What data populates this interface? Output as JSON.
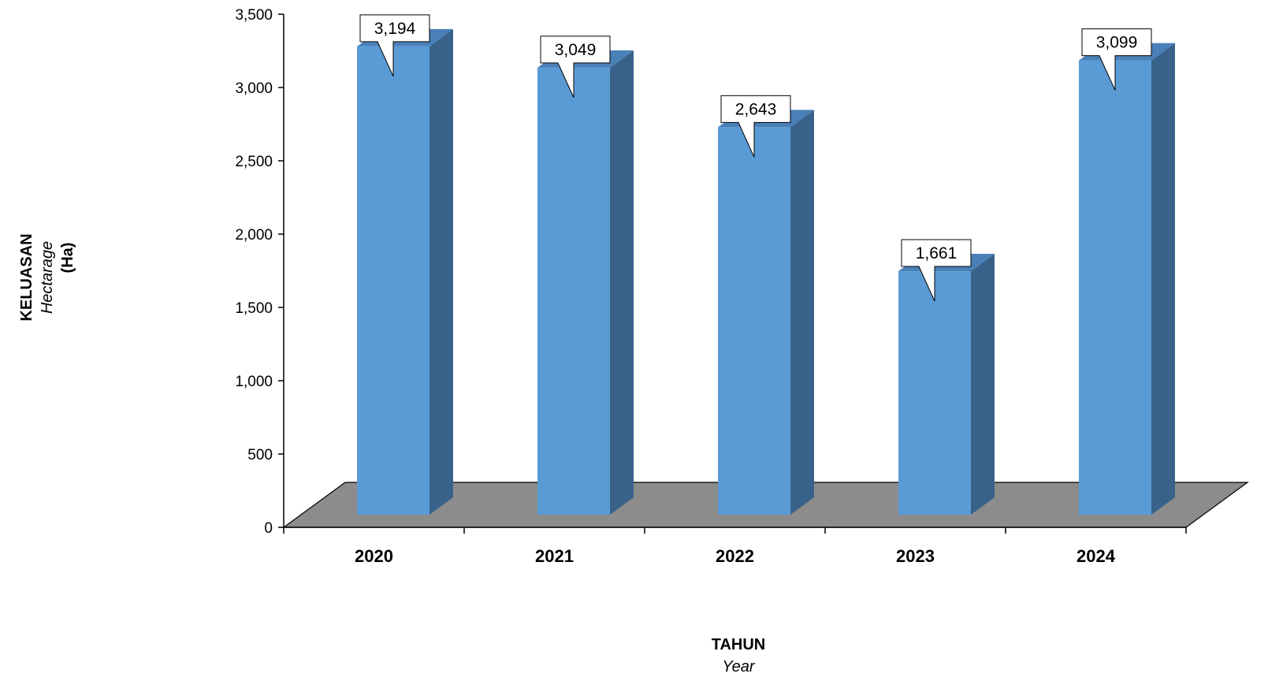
{
  "chart_data": {
    "type": "bar",
    "categories": [
      "2020",
      "2021",
      "2022",
      "2023",
      "2024"
    ],
    "values": [
      3194,
      3049,
      2643,
      1661,
      3099
    ],
    "data_labels": [
      "3,194",
      "3,049",
      "2,643",
      "1,661",
      "3,099"
    ],
    "ylim": [
      0,
      3500
    ],
    "yticks": [
      0,
      500,
      1000,
      1500,
      2000,
      2500,
      3000,
      3500
    ],
    "ytick_labels": [
      "0",
      "500",
      "1,000",
      "1,500",
      "2,000",
      "2,500",
      "3,000",
      "3,500"
    ],
    "xlabel": "TAHUN",
    "xlabel_sub": "Year",
    "ylabel": "KELUASAN",
    "ylabel_sub": "Hectarage",
    "ylabel_unit": "(Ha)",
    "grid": false,
    "legend": "none",
    "style": "3d",
    "colors": {
      "bar_front": "#5b9bd5",
      "bar_side": "#386289",
      "bar_top": "#4a80b8",
      "floor": "#8c8c8c",
      "axis": "#000000"
    }
  }
}
